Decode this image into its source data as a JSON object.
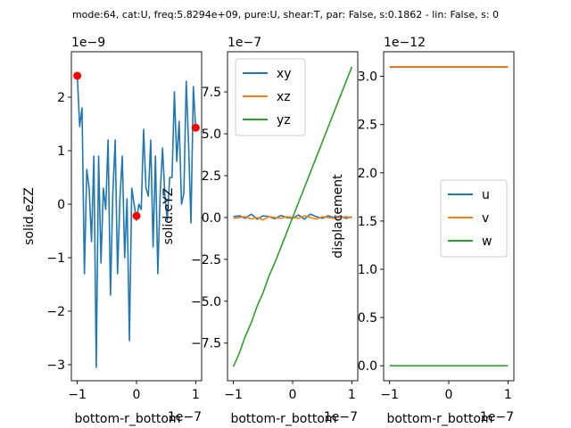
{
  "figure": {
    "suptitle": "mode:64, cat:U, freq:5.8294e+09, pure:U, shear:T, par: False, s:0.1862 - lin: False, s: 0"
  },
  "chart_data": [
    {
      "type": "line",
      "xlabel": "bottom-r_bottom",
      "ylabel": "solid.eZZ",
      "x_offset_label": "1e−7",
      "y_offset_label": "1e−9",
      "xlim": [
        -1.1,
        1.1
      ],
      "ylim": [
        -3.3,
        2.85
      ],
      "xticks": [
        -1,
        0,
        1
      ],
      "xtick_labels": [
        "−1",
        "0",
        "1"
      ],
      "yticks": [
        -3,
        -2,
        -1,
        0,
        1,
        2
      ],
      "ytick_labels": [
        "−3",
        "−2",
        "−1",
        "0",
        "1",
        "2"
      ],
      "series": [
        {
          "color": "#1f77b4",
          "x": [
            -1.0,
            -0.96,
            -0.92,
            -0.88,
            -0.84,
            -0.8,
            -0.76,
            -0.72,
            -0.68,
            -0.64,
            -0.6,
            -0.56,
            -0.52,
            -0.48,
            -0.44,
            -0.4,
            -0.36,
            -0.32,
            -0.28,
            -0.24,
            -0.2,
            -0.16,
            -0.12,
            -0.08,
            -0.04,
            0.0,
            0.04,
            0.08,
            0.12,
            0.16,
            0.2,
            0.24,
            0.28,
            0.32,
            0.36,
            0.4,
            0.44,
            0.48,
            0.52,
            0.56,
            0.6,
            0.64,
            0.68,
            0.72,
            0.76,
            0.8,
            0.84,
            0.88,
            0.92,
            0.96,
            1.0
          ],
          "y": [
            2.4,
            1.45,
            1.8,
            -1.3,
            0.65,
            0.3,
            -0.7,
            0.9,
            -3.05,
            0.9,
            -1.1,
            0.3,
            -0.1,
            1.2,
            -1.7,
            0.2,
            1.2,
            -1.3,
            0.1,
            0.9,
            -1.0,
            0.1,
            -2.55,
            0.3,
            0.0,
            -0.3,
            0.0,
            -0.1,
            1.4,
            0.3,
            0.15,
            1.2,
            -0.8,
            0.9,
            -1.3,
            0.2,
            1.05,
            0.15,
            -0.3,
            0.5,
            0.5,
            2.1,
            0.8,
            1.55,
            0.0,
            0.2,
            2.3,
            1.1,
            -0.35,
            2.2,
            1.4
          ]
        }
      ],
      "markers": {
        "color": "#ff0000",
        "x": [
          -1.0,
          0.0,
          1.0
        ],
        "y": [
          2.4,
          -0.22,
          1.43
        ]
      }
    },
    {
      "type": "line",
      "xlabel": "bottom-r_bottom",
      "ylabel": "solid.eYZ",
      "x_offset_label": "1e−7",
      "y_offset_label": "1e−7",
      "xlim": [
        -1.1,
        1.1
      ],
      "ylim": [
        -9.75,
        9.9
      ],
      "xticks": [
        -1,
        0,
        1
      ],
      "xtick_labels": [
        "−1",
        "0",
        "1"
      ],
      "yticks": [
        -7.5,
        -5.0,
        -2.5,
        0.0,
        2.5,
        5.0,
        7.5
      ],
      "ytick_labels": [
        "−7.5",
        "−5.0",
        "−2.5",
        "0.0",
        "2.5",
        "5.0",
        "7.5"
      ],
      "legend": {
        "loc": "upper-left",
        "entries": [
          "xy",
          "xz",
          "yz"
        ]
      },
      "series": [
        {
          "name": "xy",
          "color": "#1f77b4",
          "x": [
            -1.0,
            -0.9,
            -0.8,
            -0.7,
            -0.6,
            -0.5,
            -0.4,
            -0.3,
            -0.2,
            -0.1,
            0.0,
            0.1,
            0.2,
            0.3,
            0.4,
            0.5,
            0.6,
            0.7,
            0.8,
            0.9,
            1.0
          ],
          "y": [
            0.05,
            0.1,
            -0.05,
            0.2,
            -0.1,
            0.1,
            0.05,
            -0.08,
            0.12,
            0.0,
            -0.05,
            0.15,
            -0.1,
            0.2,
            0.05,
            -0.05,
            0.1,
            0.0,
            0.08,
            -0.05,
            0.05
          ]
        },
        {
          "name": "xz",
          "color": "#ff7f0e",
          "x": [
            -1.0,
            -0.9,
            -0.8,
            -0.7,
            -0.6,
            -0.5,
            -0.4,
            -0.3,
            -0.2,
            -0.1,
            0.0,
            0.1,
            0.2,
            0.3,
            0.4,
            0.5,
            0.6,
            0.7,
            0.8,
            0.9,
            1.0
          ],
          "y": [
            -0.05,
            0.0,
            0.05,
            -0.1,
            0.0,
            -0.15,
            0.05,
            0.0,
            -0.05,
            0.05,
            0.0,
            -0.05,
            0.1,
            0.0,
            -0.1,
            0.05,
            0.0,
            -0.05,
            0.0,
            0.05,
            -0.02
          ]
        },
        {
          "name": "yz",
          "color": "#2ca02c",
          "x": [
            -1.0,
            -0.9,
            -0.8,
            -0.7,
            -0.6,
            -0.5,
            -0.4,
            -0.3,
            -0.2,
            -0.1,
            0.0,
            0.1,
            0.2,
            0.3,
            0.4,
            0.5,
            0.6,
            0.7,
            0.8,
            0.9,
            1.0
          ],
          "y": [
            -8.9,
            -8.1,
            -7.1,
            -6.3,
            -5.3,
            -4.5,
            -3.5,
            -2.7,
            -1.8,
            -0.9,
            0.0,
            0.9,
            1.8,
            2.7,
            3.6,
            4.5,
            5.4,
            6.3,
            7.2,
            8.1,
            9.0
          ]
        }
      ]
    },
    {
      "type": "line",
      "xlabel": "bottom-r_bottom",
      "ylabel": "displacement",
      "x_offset_label": "1e−7",
      "y_offset_label": "1e−12",
      "xlim": [
        -1.1,
        1.1
      ],
      "ylim": [
        -0.155,
        3.255
      ],
      "xticks": [
        -1,
        0,
        1
      ],
      "xtick_labels": [
        "−1",
        "0",
        "1"
      ],
      "yticks": [
        0.0,
        0.5,
        1.0,
        1.5,
        2.0,
        2.5,
        3.0
      ],
      "ytick_labels": [
        "0.0",
        "0.5",
        "1.0",
        "1.5",
        "2.0",
        "2.5",
        "3.0"
      ],
      "legend": {
        "loc": "center-right",
        "entries": [
          "u",
          "v",
          "w"
        ]
      },
      "series": [
        {
          "name": "u",
          "color": "#1f77b4",
          "x": [
            -1.0,
            1.0
          ],
          "y": [
            3.095,
            3.095
          ]
        },
        {
          "name": "v",
          "color": "#ff7f0e",
          "x": [
            -1.0,
            1.0
          ],
          "y": [
            3.1,
            3.1
          ]
        },
        {
          "name": "w",
          "color": "#2ca02c",
          "x": [
            -1.0,
            1.0
          ],
          "y": [
            0.0,
            0.0
          ]
        }
      ]
    }
  ]
}
